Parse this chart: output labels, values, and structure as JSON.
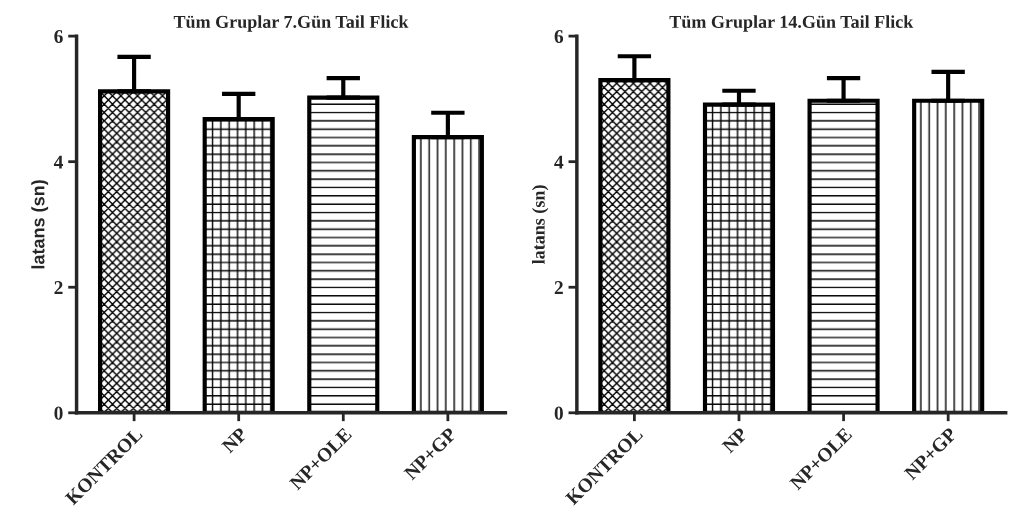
{
  "chart_data": [
    {
      "type": "bar",
      "title": "Tüm Gruplar 7.Gün Tail Flick",
      "ylabel": "latans (sn)",
      "categories": [
        "KONTROL",
        "NP",
        "NP+OLE",
        "NP+GP"
      ],
      "color": "#000000",
      "values": [
        5.12,
        4.68,
        5.02,
        4.39
      ],
      "errors": [
        [
          5.12,
          5.67
        ],
        [
          4.68,
          5.08
        ],
        [
          5.02,
          5.33
        ],
        [
          4.39,
          4.78
        ]
      ],
      "ylim": [
        0,
        6
      ],
      "yticks": [
        0,
        2,
        4,
        6
      ],
      "grid": false
    },
    {
      "type": "bar",
      "title": "Tüm Gruplar 14.Gün Tail Flick",
      "ylabel": "latans (sn)",
      "categories": [
        "KONTROL",
        "NP",
        "NP+OLE",
        "NP+GP"
      ],
      "color": "#000000",
      "values": [
        5.3,
        4.91,
        4.97,
        4.97
      ],
      "errors": [
        [
          5.3,
          5.68
        ],
        [
          4.91,
          5.13
        ],
        [
          4.97,
          5.33
        ],
        [
          4.97,
          5.43
        ]
      ],
      "ylim": [
        0,
        6
      ],
      "yticks": [
        0,
        2,
        4,
        6
      ],
      "grid": false
    }
  ]
}
